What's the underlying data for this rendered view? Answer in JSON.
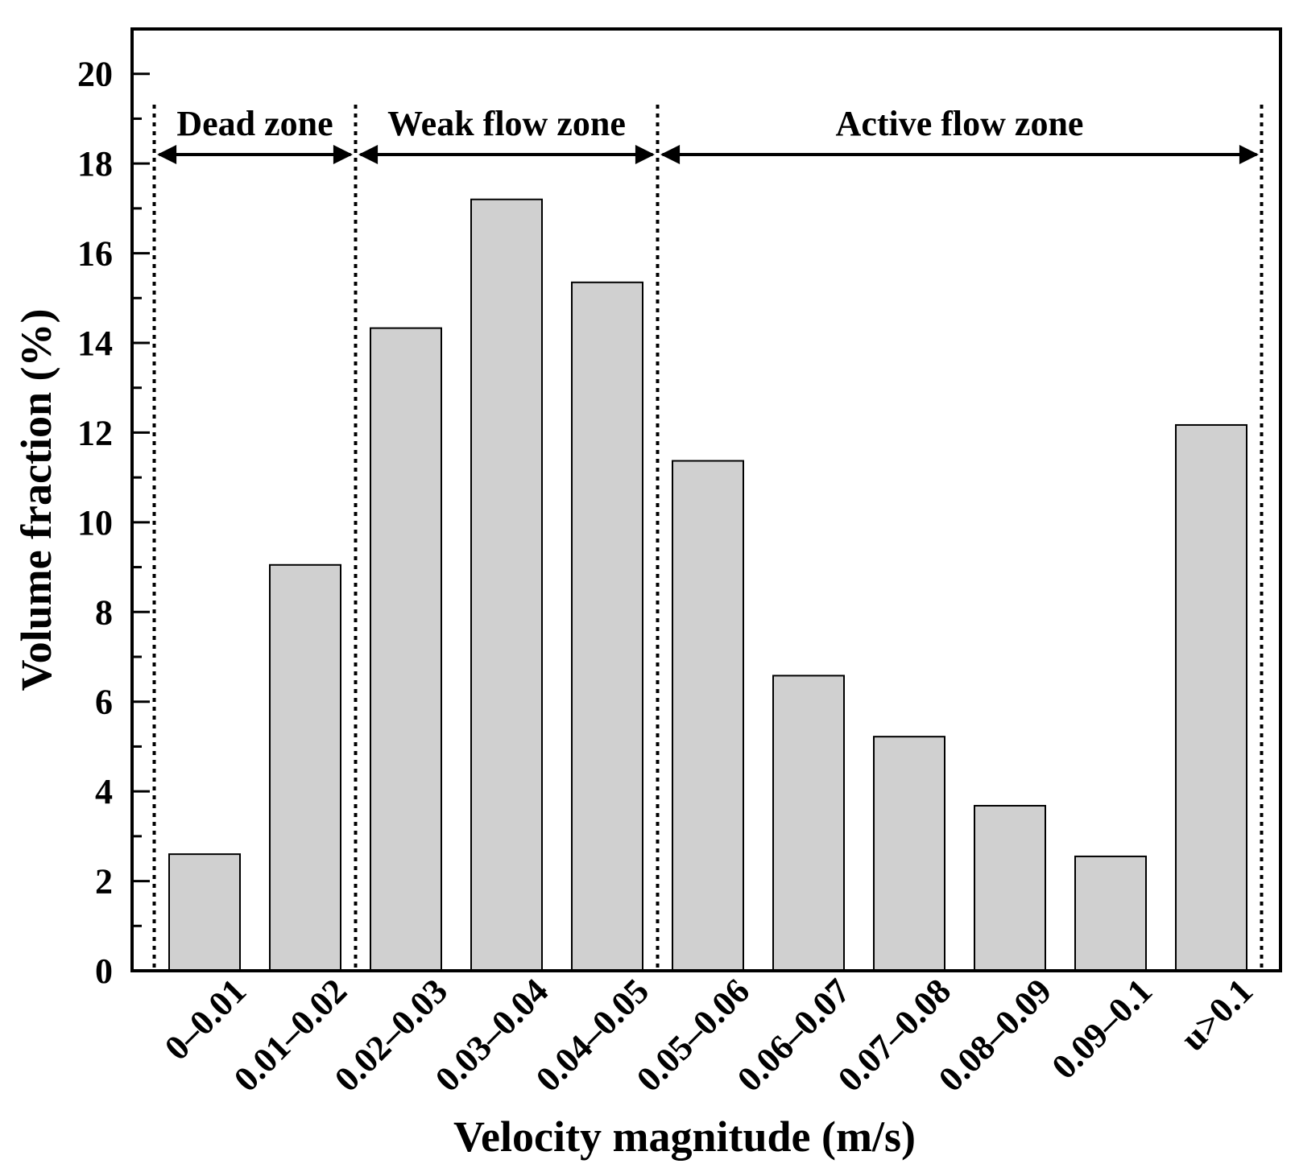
{
  "chart_data": {
    "type": "bar",
    "title": "",
    "xlabel": "Velocity magnitude (m/s)",
    "ylabel": "Volume fraction (%)",
    "ylim": [
      0,
      21
    ],
    "yticks": [
      0,
      2,
      4,
      6,
      8,
      10,
      12,
      14,
      16,
      18,
      20
    ],
    "ytick_labels": [
      "0",
      "2",
      "4",
      "6",
      "8",
      "10",
      "12",
      "14",
      "16",
      "18",
      "20"
    ],
    "categories": [
      "0–0.01",
      "0.01–0.02",
      "0.02–0.03",
      "0.03–0.04",
      "0.04–0.05",
      "0.05–0.06",
      "0.06–0.07",
      "0.07–0.08",
      "0.08–0.09",
      "0.09–0.1",
      "u>0.1"
    ],
    "values": [
      2.6,
      9.05,
      14.33,
      17.2,
      15.35,
      11.37,
      6.58,
      5.22,
      3.68,
      2.55,
      12.17
    ],
    "bar_color": "#d0d0d0",
    "edge_color": "#000000",
    "grid": false,
    "zones": [
      {
        "label": "Dead zone",
        "start_boundary": 0,
        "end_boundary": 2
      },
      {
        "label": "Weak flow zone",
        "start_boundary": 2,
        "end_boundary": 5
      },
      {
        "label": "Active flow zone",
        "start_boundary": 5,
        "end_boundary": 11
      }
    ],
    "zone_arrow_y": 18.2
  }
}
